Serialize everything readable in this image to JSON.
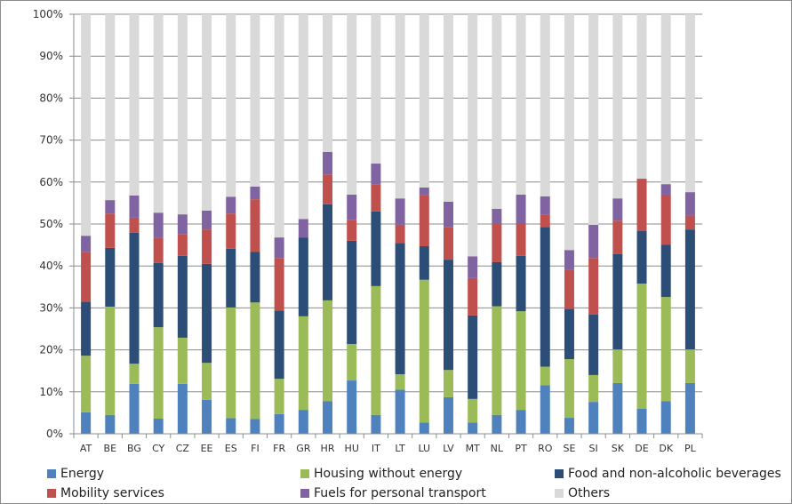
{
  "chart_data": {
    "type": "bar",
    "stacked": true,
    "title": "",
    "xlabel": "",
    "ylabel": "",
    "ylim": [
      0,
      100
    ],
    "y_ticks": [
      "0%",
      "10%",
      "20%",
      "30%",
      "40%",
      "50%",
      "60%",
      "70%",
      "80%",
      "90%",
      "100%"
    ],
    "grid": true,
    "legend_position": "bottom",
    "categories": [
      "AT",
      "BE",
      "BG",
      "CY",
      "CZ",
      "EE",
      "ES",
      "FI",
      "FR",
      "GR",
      "HR",
      "HU",
      "IT",
      "LT",
      "LU",
      "LV",
      "MT",
      "NL",
      "PT",
      "RO",
      "SE",
      "SI",
      "SK",
      "DE",
      "DK",
      "PL"
    ],
    "series": [
      {
        "name": "Energy",
        "color": "#4F81BD",
        "values": [
          5.1,
          4.5,
          11.9,
          3.6,
          11.9,
          8.1,
          3.7,
          3.5,
          4.7,
          5.7,
          7.8,
          12.7,
          4.5,
          10.5,
          2.7,
          8.7,
          2.7,
          4.5,
          5.7,
          11.6,
          3.8,
          7.6,
          12.1,
          6.0,
          7.8,
          12.1
        ]
      },
      {
        "name": "Housing without energy",
        "color": "#9BBB59",
        "values": [
          13.5,
          25.8,
          4.8,
          21.8,
          11.0,
          8.8,
          26.4,
          27.8,
          8.4,
          22.3,
          24.0,
          8.7,
          30.7,
          3.7,
          34.0,
          6.5,
          5.6,
          25.9,
          23.5,
          4.4,
          14.0,
          6.4,
          8.0,
          29.8,
          24.8,
          8.0
        ]
      },
      {
        "name": "Food and non-alcoholic beverages",
        "color": "#2C4D75",
        "values": [
          12.9,
          14.0,
          31.2,
          15.3,
          19.5,
          23.6,
          14.0,
          12.1,
          16.3,
          18.8,
          22.9,
          24.6,
          17.8,
          31.3,
          8.0,
          26.3,
          19.9,
          10.5,
          13.2,
          33.3,
          12.0,
          14.4,
          22.7,
          12.5,
          12.5,
          28.6
        ]
      },
      {
        "name": "Mobility services",
        "color": "#C0504D",
        "values": [
          11.9,
          8.2,
          3.6,
          6.1,
          5.1,
          8.2,
          8.4,
          12.5,
          12.5,
          0.0,
          7.1,
          4.9,
          6.4,
          4.3,
          12.1,
          7.8,
          8.9,
          9.2,
          7.7,
          2.9,
          9.2,
          13.5,
          8.0,
          12.3,
          11.9,
          3.3
        ]
      },
      {
        "name": "Fuels for personal transport",
        "color": "#8064A2",
        "values": [
          3.8,
          3.2,
          5.3,
          5.9,
          4.8,
          4.5,
          4.0,
          3.0,
          4.9,
          4.4,
          5.4,
          6.1,
          5.0,
          6.3,
          1.9,
          6.0,
          5.2,
          3.5,
          6.9,
          4.4,
          4.8,
          7.9,
          5.3,
          0.2,
          2.5,
          5.6
        ]
      },
      {
        "name": "Others",
        "color": "#D9D9D9",
        "values": [
          52.8,
          44.3,
          43.2,
          47.3,
          47.7,
          46.8,
          43.5,
          41.1,
          53.2,
          48.8,
          32.8,
          43.0,
          35.6,
          43.9,
          41.3,
          44.7,
          57.7,
          46.4,
          43.0,
          43.4,
          56.2,
          50.2,
          43.9,
          39.2,
          40.5,
          42.4
        ]
      }
    ]
  }
}
